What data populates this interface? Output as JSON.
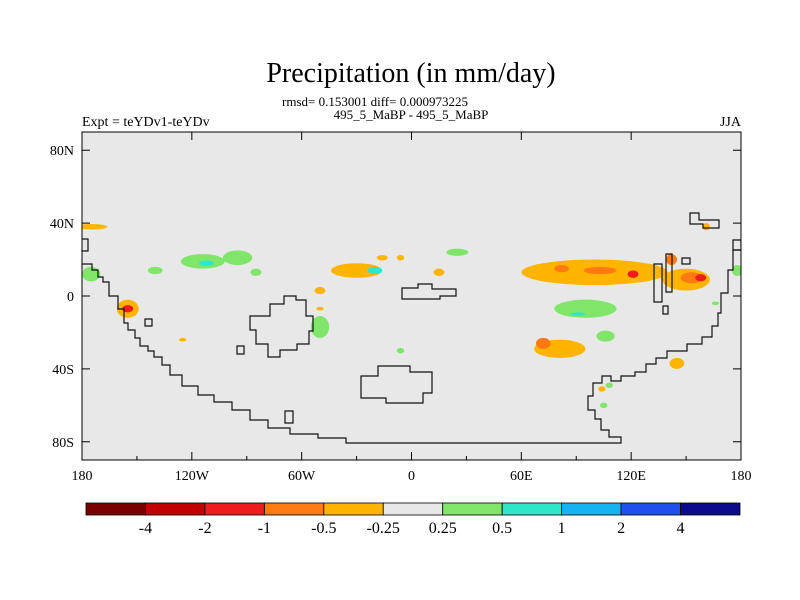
{
  "chart_data": {
    "type": "heatmap",
    "title": "Precipitation (in mm/day)",
    "stats_line": "rmsd= 0.153001 diff= 0.000973225",
    "subtitle": "495_5_MaBP - 495_5_MaBP",
    "left_label": "Expt = teYDv1-teYDv",
    "right_label": "JJA",
    "x_ticks": [
      {
        "value": -180,
        "label": "180"
      },
      {
        "value": -120,
        "label": "120W"
      },
      {
        "value": -60,
        "label": "60W"
      },
      {
        "value": 0,
        "label": "0"
      },
      {
        "value": 60,
        "label": "60E"
      },
      {
        "value": 120,
        "label": "120E"
      },
      {
        "value": 180,
        "label": "180"
      }
    ],
    "y_ticks": [
      {
        "value": 80,
        "label": "80N"
      },
      {
        "value": 40,
        "label": "40N"
      },
      {
        "value": 0,
        "label": "0"
      },
      {
        "value": -40,
        "label": "40S"
      },
      {
        "value": -80,
        "label": "80S"
      }
    ],
    "xlim": [
      -180,
      180
    ],
    "ylim": [
      -90,
      90
    ],
    "colorbar": {
      "colors": [
        "#7a0000",
        "#c30000",
        "#ee1c1c",
        "#ff7a12",
        "#ffb400",
        "#e8e8e8",
        "#7fe66a",
        "#2ee6c8",
        "#14b4f0",
        "#1e50f0",
        "#0a0a8c"
      ],
      "labels": [
        "-4",
        "-2",
        "-1",
        "-0.5",
        "-0.25",
        "0.25",
        "0.5",
        "1",
        "2",
        "4"
      ]
    },
    "anomaly_regions": [
      {
        "lon": -175,
        "lat": 38,
        "rx": 9,
        "ry": 1.5,
        "level": "-0.25"
      },
      {
        "lon": -155,
        "lat": -7,
        "rx": 6,
        "ry": 5,
        "level": "-0.25"
      },
      {
        "lon": -155,
        "lat": -7,
        "rx": 3,
        "ry": 2,
        "level": "-1"
      },
      {
        "lon": -114,
        "lat": 19,
        "rx": 12,
        "ry": 4,
        "level": "0.25"
      },
      {
        "lon": -112,
        "lat": 18,
        "rx": 4,
        "ry": 1.5,
        "level": "0.5"
      },
      {
        "lon": -95,
        "lat": 21,
        "rx": 8,
        "ry": 4,
        "level": "0.25"
      },
      {
        "lon": -140,
        "lat": 14,
        "rx": 4,
        "ry": 2,
        "level": "0.25"
      },
      {
        "lon": -85,
        "lat": 13,
        "rx": 3,
        "ry": 2,
        "level": "0.25"
      },
      {
        "lon": -30,
        "lat": 14,
        "rx": 14,
        "ry": 4,
        "level": "-0.25"
      },
      {
        "lon": -20,
        "lat": 14,
        "rx": 4,
        "ry": 2,
        "level": "0.5"
      },
      {
        "lon": -16,
        "lat": 21,
        "rx": 3,
        "ry": 1.5,
        "level": "-0.25"
      },
      {
        "lon": -6,
        "lat": 21,
        "rx": 2,
        "ry": 1.5,
        "level": "-0.25"
      },
      {
        "lon": 15,
        "lat": 13,
        "rx": 3,
        "ry": 2,
        "level": "-0.25"
      },
      {
        "lon": 25,
        "lat": 24,
        "rx": 6,
        "ry": 2,
        "level": "0.25"
      },
      {
        "lon": -50,
        "lat": 3,
        "rx": 3,
        "ry": 2,
        "level": "-0.25"
      },
      {
        "lon": -50,
        "lat": -7,
        "rx": 2,
        "ry": 1,
        "level": "-0.25"
      },
      {
        "lon": -50,
        "lat": -17,
        "rx": 5,
        "ry": 6,
        "level": "0.25"
      },
      {
        "lon": -125,
        "lat": -24,
        "rx": 2,
        "ry": 1,
        "level": "-0.25"
      },
      {
        "lon": -6,
        "lat": -30,
        "rx": 2,
        "ry": 1.5,
        "level": "0.25"
      },
      {
        "lon": 100,
        "lat": 13,
        "rx": 40,
        "ry": 7,
        "level": "-0.25"
      },
      {
        "lon": 103,
        "lat": 14,
        "rx": 9,
        "ry": 2,
        "level": "-0.5"
      },
      {
        "lon": 121,
        "lat": 12,
        "rx": 3,
        "ry": 2,
        "level": "-1"
      },
      {
        "lon": 82,
        "lat": 15,
        "rx": 4,
        "ry": 2,
        "level": "-0.5"
      },
      {
        "lon": 150,
        "lat": 9,
        "rx": 13,
        "ry": 6,
        "level": "-0.25"
      },
      {
        "lon": 153,
        "lat": 10,
        "rx": 6,
        "ry": 3,
        "level": "-0.5"
      },
      {
        "lon": 158,
        "lat": 10,
        "rx": 3,
        "ry": 2,
        "level": "-1"
      },
      {
        "lon": 142,
        "lat": 20,
        "rx": 3,
        "ry": 3,
        "level": "-0.5"
      },
      {
        "lon": 161,
        "lat": 38,
        "rx": 2,
        "ry": 2,
        "level": "-0.25"
      },
      {
        "lon": 95,
        "lat": -7,
        "rx": 17,
        "ry": 5,
        "level": "0.25"
      },
      {
        "lon": 91,
        "lat": -10,
        "rx": 4,
        "ry": 1,
        "level": "0.5"
      },
      {
        "lon": 81,
        "lat": -29,
        "rx": 14,
        "ry": 5,
        "level": "-0.25"
      },
      {
        "lon": 72,
        "lat": -26,
        "rx": 4,
        "ry": 3,
        "level": "-0.5"
      },
      {
        "lon": 106,
        "lat": -22,
        "rx": 5,
        "ry": 3,
        "level": "0.25"
      },
      {
        "lon": 145,
        "lat": -37,
        "rx": 4,
        "ry": 3,
        "level": "-0.25"
      },
      {
        "lon": 108,
        "lat": -49,
        "rx": 2,
        "ry": 1.5,
        "level": "0.25"
      },
      {
        "lon": 104,
        "lat": -51,
        "rx": 2,
        "ry": 1.5,
        "level": "-0.25"
      },
      {
        "lon": -175,
        "lat": 12,
        "rx": 5,
        "ry": 4,
        "level": "0.25"
      },
      {
        "lon": 178,
        "lat": 14,
        "rx": 3,
        "ry": 3,
        "level": "0.25"
      },
      {
        "lon": 166,
        "lat": -4,
        "rx": 2,
        "ry": 1,
        "level": "0.25"
      },
      {
        "lon": 105,
        "lat": -60,
        "rx": 2,
        "ry": 1.5,
        "level": "0.25"
      }
    ]
  }
}
